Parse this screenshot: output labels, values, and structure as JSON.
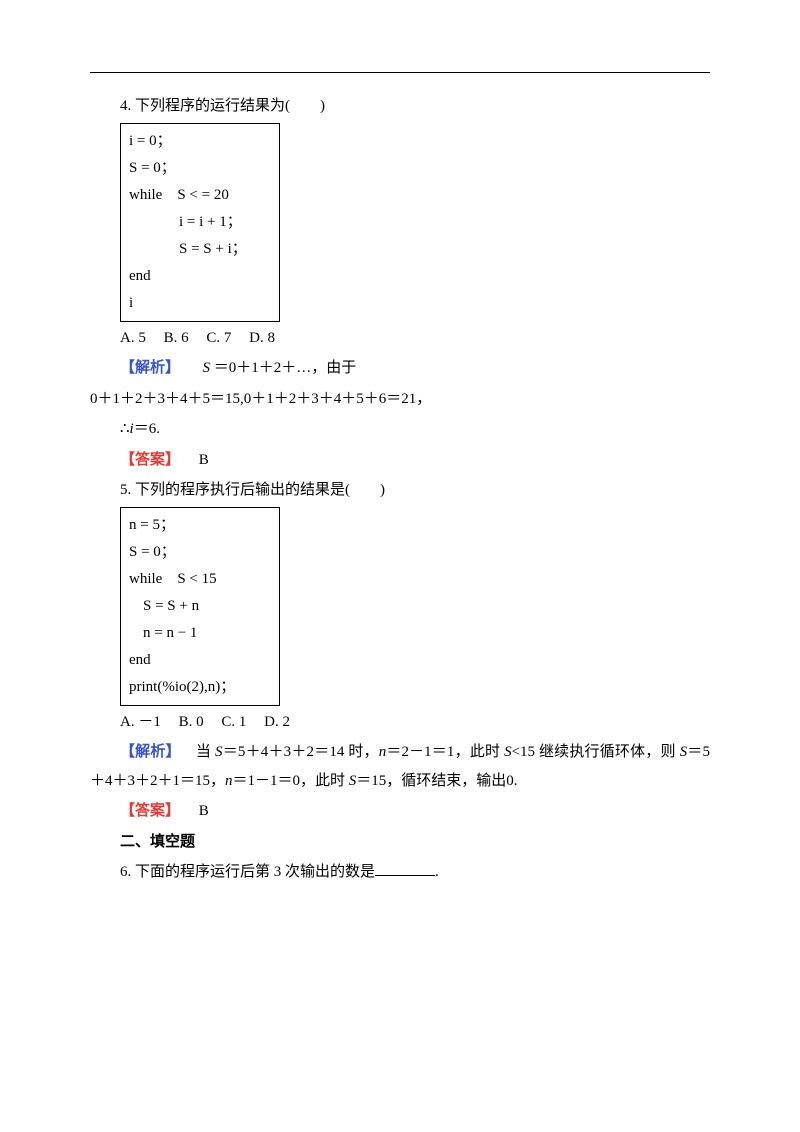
{
  "q4": {
    "stem": "4. 下列程序的运行结果为(　　)",
    "code": {
      "l1": "i = 0；",
      "l2": "S = 0；",
      "l3": "while S < = 20",
      "l4": "i = i + 1；",
      "l5": "S = S + i；",
      "l6": "end",
      "l7": "i"
    },
    "options": {
      "a": "A. 5",
      "b": "B. 6",
      "c": "C. 7",
      "d": "D. 8"
    },
    "analysis_label": "【解析】",
    "analysis_1_prefix": " ",
    "analysis_1": "＝0＋1＋2＋…，由于",
    "analysis_2": "0＋1＋2＋3＋4＋5＝15,0＋1＋2＋3＋4＋5＋6＝21，",
    "analysis_3_prefix": "∴",
    "analysis_3_var": "i",
    "analysis_3_rest": "＝6.",
    "answer_label": "【答案】",
    "answer": "B"
  },
  "q5": {
    "stem": "5. 下列的程序执行后输出的结果是(　　)",
    "code": {
      "l1": "n = 5；",
      "l2": "S = 0；",
      "l3": "while S < 15",
      "l4": "S = S + n",
      "l5": "n = n − 1",
      "l6": "end",
      "l7": "print(%io(2),n)；"
    },
    "options": {
      "a": "A. －1",
      "b": "B. 0",
      "c": "C. 1",
      "d": "D. 2"
    },
    "analysis_label": "【解析】",
    "analysis_body_prefix": " 当 ",
    "analysis_body": "＝5＋4＋3＋2＝14 时，",
    "analysis_body2": "＝2－1＝1，此时 ",
    "analysis_body3": "<15 继续执行循环体，则 ",
    "analysis_body4": "＝5＋4＋3＋2＋1＝15，",
    "analysis_body5": "＝1－1＝0，此时 ",
    "analysis_body6": "＝15，循环结束，输出0.",
    "answer_label": "【答案】",
    "answer": "B"
  },
  "section2": "二、填空题",
  "q6": {
    "stem_before": "6. 下面的程序运行后第 3 次输出的数是",
    "stem_after": "."
  },
  "vars": {
    "S": "S",
    "i": "i",
    "n": "n"
  }
}
